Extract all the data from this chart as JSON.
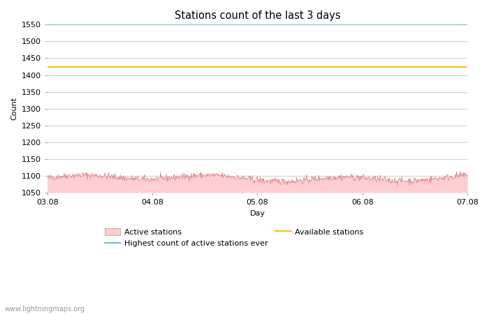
{
  "title": "Stations count of the last 3 days",
  "xlabel": "Day",
  "ylabel": "Count",
  "ylim": [
    1050,
    1550
  ],
  "yticks": [
    1050,
    1100,
    1150,
    1200,
    1250,
    1300,
    1350,
    1400,
    1450,
    1500,
    1550
  ],
  "xlim_start": 0,
  "xlim_end": 96,
  "xtick_positions": [
    0,
    24,
    48,
    72,
    96
  ],
  "xtick_labels": [
    "03.08",
    "04.08",
    "05.08",
    "06.08",
    "07.08"
  ],
  "highest_ever_value": 1550,
  "highest_ever_color": "#62c4d0",
  "available_stations_value": 1425,
  "available_stations_color": "#FFC107",
  "active_fill_color": "#FFCDD2",
  "active_line_color": "#d08080",
  "active_base_value": 1050,
  "active_mean": 1093,
  "background_color": "#ffffff",
  "grid_color": "#cccccc",
  "watermark": "www.lightningmaps.org",
  "legend_labels": [
    "Active stations",
    "Highest count of active stations ever",
    "Available stations"
  ]
}
